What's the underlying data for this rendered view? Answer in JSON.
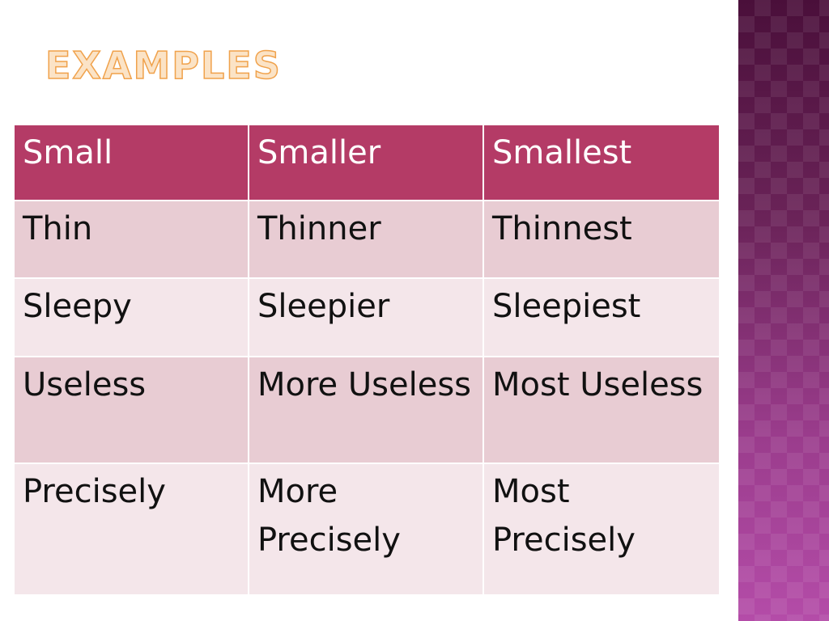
{
  "title": "EXAMPLES",
  "colors": {
    "header_bg": "#b43b66",
    "row_dark": "#e8ccd3",
    "row_light": "#f4e6ea",
    "title_fill": "#fbe3c6",
    "title_outline": "#f0a24c",
    "side_band": "#7a2d6c"
  },
  "table": {
    "header": [
      "Small",
      "Smaller",
      "Smallest"
    ],
    "rows": [
      [
        "Thin",
        "Thinner",
        "Thinnest"
      ],
      [
        "Sleepy",
        "Sleepier",
        "Sleepiest"
      ],
      [
        "Useless",
        "More Useless",
        "Most Useless"
      ],
      [
        "Precisely",
        "More Precisely",
        "Most Precisely"
      ]
    ]
  }
}
